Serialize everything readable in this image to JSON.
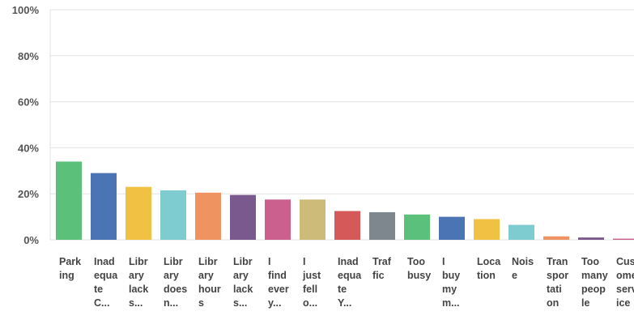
{
  "chart_data": {
    "type": "bar",
    "title": "",
    "xlabel": "",
    "ylabel": "",
    "ylim": [
      0,
      100
    ],
    "yticks": [
      "100%",
      "80%",
      "60%",
      "40%",
      "20%",
      "0%"
    ],
    "grid": true,
    "legend": "none",
    "categories": [
      [
        "Park",
        "ing"
      ],
      [
        "Inad",
        "equa",
        "te",
        "C..."
      ],
      [
        "Libr",
        "ary",
        "lack",
        "s..."
      ],
      [
        "Libr",
        "ary",
        "does",
        "n..."
      ],
      [
        "Libr",
        "ary",
        "hour",
        "s"
      ],
      [
        "Libr",
        "ary",
        "lack",
        "s..."
      ],
      [
        "I",
        "find",
        "ever",
        "y..."
      ],
      [
        "I",
        "just",
        "fell",
        "o..."
      ],
      [
        "Inad",
        "equa",
        "te",
        "Y..."
      ],
      [
        "Traf",
        "fic"
      ],
      [
        "Too",
        "busy"
      ],
      [
        "I",
        "buy",
        "my",
        "m..."
      ],
      [
        "Loca",
        "tion"
      ],
      [
        "Nois",
        "e"
      ],
      [
        "Tran",
        "spor",
        "tati",
        "on"
      ],
      [
        "Too",
        "many",
        "peop",
        "le"
      ],
      [
        "Cust",
        "omer",
        "serv",
        "ice"
      ]
    ],
    "values": [
      34,
      29,
      23,
      21.5,
      20.5,
      19.5,
      17.5,
      17.5,
      12.5,
      12,
      11,
      10,
      9,
      6.5,
      1.5,
      1,
      0.5
    ],
    "colors": [
      "#5ac07a",
      "#4a74b4",
      "#f0c143",
      "#7ecbd0",
      "#ef9460",
      "#7a5a8e",
      "#cb5f8e",
      "#cdbb7a",
      "#d45958",
      "#7d878d",
      "#5ac07a",
      "#4a74b4",
      "#f0c143",
      "#7ecbd0",
      "#ef9460",
      "#7a5a8e",
      "#cb5f8e"
    ]
  }
}
